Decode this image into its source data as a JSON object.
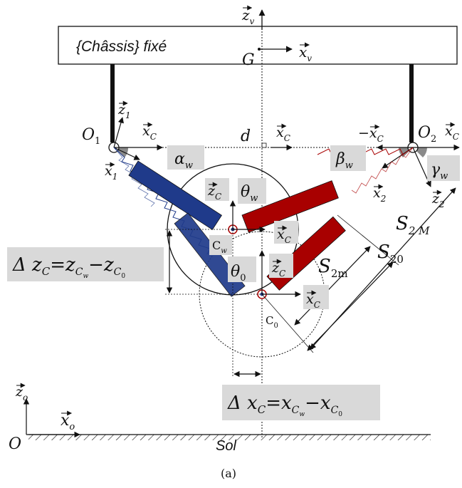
{
  "chassis": {
    "label": "{Châssis} fixé"
  },
  "points": {
    "G": "G",
    "O1": "O",
    "O1_sub": "1",
    "O2": "O",
    "O2_sub": "2",
    "C0": "C",
    "C0_sub": "0",
    "Cw": "C",
    "Cw_sub": "w",
    "O": "O"
  },
  "vectors": {
    "zv": "z",
    "zv_sub": "v",
    "xv": "x",
    "xv_sub": "v",
    "z1": "z",
    "z1_sub": "1",
    "x1": "x",
    "x1_sub": "1",
    "z2": "z",
    "z2_sub": "2",
    "x2": "x",
    "x2_sub": "2",
    "xC": "x",
    "xC_sub": "C",
    "zC": "z",
    "zC_sub": "C",
    "neg_xC": "−x",
    "neg_xC_sub": "C",
    "xC_edge": "x",
    "xC_edge_sub": "C",
    "zo": "z",
    "zo_sub": "o",
    "xo": "x",
    "xo_sub": "o"
  },
  "dims": {
    "d": "d",
    "S2M": "S",
    "S2M_sub": "2 M",
    "S2m": "S",
    "S2m_sub": "2m",
    "S20": "S",
    "S20_sub": "20"
  },
  "angles": {
    "alpha": "α",
    "alpha_sub": "w",
    "beta": "β",
    "beta_sub": "w",
    "gamma": "γ",
    "gamma_sub": "w",
    "theta_w": "θ",
    "theta_w_sub": "w",
    "theta_0": "θ",
    "theta_0_sub": "0"
  },
  "formulas": {
    "dz": {
      "lhs": "Δ z",
      "lhs_sub": "C",
      "eq": "=",
      "a": "z",
      "a_sub": "C",
      "a_subsub": "w",
      "minus": "−",
      "b": "z",
      "b_sub": "C",
      "b_subsub": "0"
    },
    "dx": {
      "lhs": "Δ x",
      "lhs_sub": "C",
      "eq": "=",
      "a": "x",
      "a_sub": "C",
      "a_subsub": "w",
      "minus": "−",
      "b": "x",
      "b_sub": "C",
      "b_subsub": "0"
    }
  },
  "ground": {
    "label": "Sol"
  },
  "caption": "(a)",
  "colors": {
    "blue": "#1f3a8a",
    "red": "#a80000",
    "chip": "#d9d9d9"
  }
}
